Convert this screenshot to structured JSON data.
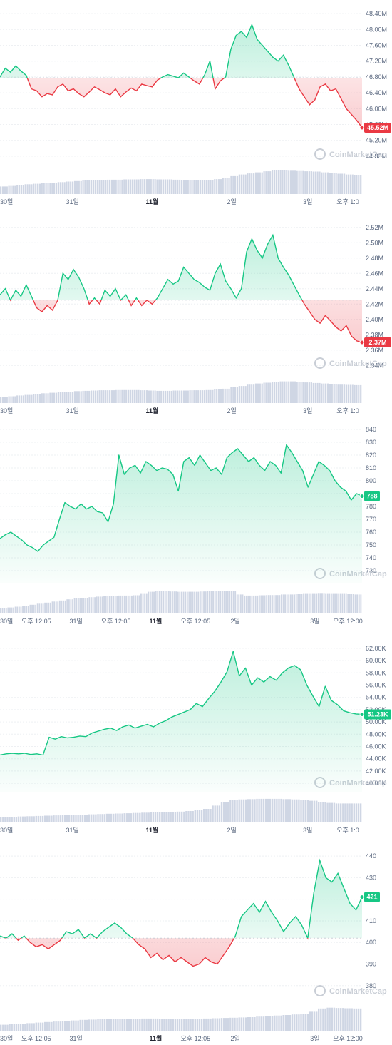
{
  "colors": {
    "up": "#16c784",
    "down": "#ea3943",
    "volume": "#cfd6e4",
    "grid": "#eef0f3",
    "tick": "#58667e"
  },
  "watermark": "CoinMarketCap",
  "chart_data": [
    {
      "type": "line",
      "ylim": [
        44.6,
        48.6
      ],
      "yticks": [
        "48.40M",
        "48.00M",
        "47.60M",
        "47.20M",
        "46.80M",
        "46.40M",
        "46.00M",
        "45.60M",
        "45.20M",
        "44.80M"
      ],
      "ytick_values": [
        48.4,
        48.0,
        47.6,
        47.2,
        46.8,
        46.4,
        46.0,
        45.6,
        45.2,
        44.8
      ],
      "xticks": [
        {
          "label": "30일",
          "pos": 0.0
        },
        {
          "label": "31일",
          "pos": 0.2
        },
        {
          "label": "11월",
          "pos": 0.42,
          "bold": true
        },
        {
          "label": "2일",
          "pos": 0.64
        },
        {
          "label": "3일",
          "pos": 0.85
        },
        {
          "label": "오후 1:0",
          "pos": 0.97
        }
      ],
      "baseline": 46.78,
      "current_label": "45.52M",
      "current_value": 45.52,
      "current_color": "down",
      "points": [
        46.8,
        47.02,
        46.92,
        47.08,
        46.95,
        46.84,
        46.5,
        46.45,
        46.3,
        46.38,
        46.35,
        46.55,
        46.62,
        46.45,
        46.5,
        46.38,
        46.3,
        46.42,
        46.55,
        46.48,
        46.4,
        46.35,
        46.5,
        46.3,
        46.42,
        46.52,
        46.45,
        46.62,
        46.58,
        46.55,
        46.72,
        46.8,
        46.86,
        46.82,
        46.78,
        46.9,
        46.8,
        46.7,
        46.62,
        46.85,
        47.2,
        46.5,
        46.7,
        46.8,
        47.5,
        47.85,
        47.95,
        47.8,
        48.12,
        47.75,
        47.6,
        47.45,
        47.3,
        47.2,
        47.35,
        47.1,
        46.8,
        46.5,
        46.3,
        46.1,
        46.22,
        46.55,
        46.62,
        46.45,
        46.5,
        46.25,
        46.0,
        45.85,
        45.7,
        45.52
      ],
      "volume": [
        0.28,
        0.3,
        0.33,
        0.36,
        0.38,
        0.4,
        0.42,
        0.44,
        0.46,
        0.48,
        0.5,
        0.51,
        0.52,
        0.53,
        0.53,
        0.54,
        0.54,
        0.55,
        0.55,
        0.54,
        0.54,
        0.53,
        0.52,
        0.52,
        0.5,
        0.5,
        0.55,
        0.6,
        0.66,
        0.72,
        0.76,
        0.8,
        0.84,
        0.87,
        0.88,
        0.86,
        0.85,
        0.84,
        0.83,
        0.8,
        0.77,
        0.75,
        0.72,
        0.7
      ]
    },
    {
      "type": "line",
      "ylim": [
        2.33,
        2.53
      ],
      "yticks": [
        "2.52M",
        "2.50M",
        "2.48M",
        "2.46M",
        "2.44M",
        "2.42M",
        "2.40M",
        "2.38M",
        "2.36M",
        "2.34M"
      ],
      "ytick_values": [
        2.52,
        2.5,
        2.48,
        2.46,
        2.44,
        2.42,
        2.4,
        2.38,
        2.36,
        2.34
      ],
      "xticks": [
        {
          "label": "30일",
          "pos": 0.0
        },
        {
          "label": "31일",
          "pos": 0.2
        },
        {
          "label": "11월",
          "pos": 0.42,
          "bold": true
        },
        {
          "label": "2일",
          "pos": 0.64
        },
        {
          "label": "3일",
          "pos": 0.85
        },
        {
          "label": "오후 1:0",
          "pos": 0.97
        }
      ],
      "baseline": 2.425,
      "current_label": "2.37M",
      "current_value": 2.37,
      "current_color": "down",
      "points": [
        2.432,
        2.44,
        2.425,
        2.438,
        2.43,
        2.445,
        2.43,
        2.415,
        2.41,
        2.418,
        2.412,
        2.425,
        2.46,
        2.452,
        2.465,
        2.455,
        2.44,
        2.42,
        2.428,
        2.42,
        2.438,
        2.43,
        2.44,
        2.425,
        2.432,
        2.418,
        2.428,
        2.418,
        2.425,
        2.42,
        2.428,
        2.44,
        2.452,
        2.446,
        2.45,
        2.468,
        2.46,
        2.452,
        2.448,
        2.442,
        2.438,
        2.46,
        2.472,
        2.45,
        2.44,
        2.428,
        2.44,
        2.488,
        2.505,
        2.49,
        2.48,
        2.498,
        2.51,
        2.48,
        2.468,
        2.458,
        2.445,
        2.432,
        2.42,
        2.41,
        2.4,
        2.395,
        2.405,
        2.398,
        2.39,
        2.385,
        2.392,
        2.378,
        2.372,
        2.37
      ],
      "volume": [
        0.22,
        0.25,
        0.28,
        0.3,
        0.33,
        0.36,
        0.38,
        0.4,
        0.42,
        0.44,
        0.45,
        0.46,
        0.47,
        0.47,
        0.48,
        0.48,
        0.48,
        0.47,
        0.46,
        0.45,
        0.45,
        0.46,
        0.46,
        0.47,
        0.47,
        0.48,
        0.5,
        0.53,
        0.58,
        0.63,
        0.68,
        0.72,
        0.75,
        0.78,
        0.8,
        0.8,
        0.78,
        0.76,
        0.74,
        0.72,
        0.7,
        0.68,
        0.67,
        0.66
      ]
    },
    {
      "type": "area",
      "ylim": [
        720,
        845
      ],
      "yticks": [
        "840",
        "830",
        "820",
        "810",
        "800",
        "790",
        "780",
        "770",
        "760",
        "750",
        "740",
        "730"
      ],
      "ytick_values": [
        840,
        830,
        820,
        810,
        800,
        790,
        780,
        770,
        760,
        750,
        740,
        730
      ],
      "xticks": [
        {
          "label": "30일",
          "pos": 0.0
        },
        {
          "label": "오후 12:05",
          "pos": 0.1
        },
        {
          "label": "31일",
          "pos": 0.21
        },
        {
          "label": "오후 12:05",
          "pos": 0.32
        },
        {
          "label": "11월",
          "pos": 0.43,
          "bold": true
        },
        {
          "label": "오후 12:05",
          "pos": 0.54
        },
        {
          "label": "2일",
          "pos": 0.65
        },
        {
          "label": "3일",
          "pos": 0.87
        },
        {
          "label": "오후 12:00",
          "pos": 0.97
        }
      ],
      "current_label": "788",
      "current_value": 788,
      "current_color": "up",
      "points": [
        755,
        758,
        760,
        757,
        754,
        750,
        748,
        745,
        750,
        753,
        756,
        770,
        783,
        780,
        778,
        782,
        778,
        780,
        776,
        775,
        768,
        782,
        820,
        805,
        810,
        812,
        806,
        815,
        812,
        808,
        810,
        809,
        805,
        792,
        815,
        818,
        812,
        820,
        814,
        808,
        810,
        805,
        818,
        822,
        825,
        820,
        815,
        818,
        812,
        808,
        815,
        812,
        806,
        828,
        822,
        815,
        808,
        795,
        805,
        815,
        812,
        808,
        800,
        795,
        792,
        785,
        790,
        788
      ],
      "volume": [
        0.2,
        0.22,
        0.25,
        0.28,
        0.32,
        0.36,
        0.4,
        0.44,
        0.48,
        0.52,
        0.56,
        0.58,
        0.6,
        0.62,
        0.64,
        0.65,
        0.66,
        0.66,
        0.67,
        0.72,
        0.8,
        0.82,
        0.82,
        0.81,
        0.8,
        0.8,
        0.8,
        0.81,
        0.82,
        0.83,
        0.84,
        0.82,
        0.7,
        0.66,
        0.66,
        0.67,
        0.68,
        0.68,
        0.7,
        0.7,
        0.71,
        0.72,
        0.72,
        0.73,
        0.72,
        0.72,
        0.72,
        0.71,
        0.7
      ]
    },
    {
      "type": "area",
      "ylim": [
        38.5,
        63.5
      ],
      "yticks": [
        "62.00K",
        "60.00K",
        "58.00K",
        "56.00K",
        "54.00K",
        "52.00K",
        "50.00K",
        "48.00K",
        "46.00K",
        "44.00K",
        "42.00K",
        "40.00K"
      ],
      "ytick_values": [
        62,
        60,
        58,
        56,
        54,
        52,
        50,
        48,
        46,
        44,
        42,
        40
      ],
      "xticks": [
        {
          "label": "30일",
          "pos": 0.0
        },
        {
          "label": "31일",
          "pos": 0.2
        },
        {
          "label": "11월",
          "pos": 0.42,
          "bold": true
        },
        {
          "label": "2일",
          "pos": 0.64
        },
        {
          "label": "3일",
          "pos": 0.85
        },
        {
          "label": "오후 1:0",
          "pos": 0.97
        }
      ],
      "current_label": "51.23K",
      "current_value": 51.23,
      "current_color": "up",
      "points": [
        44.6,
        44.8,
        44.9,
        44.8,
        44.9,
        44.7,
        44.8,
        44.6,
        47.5,
        47.2,
        47.6,
        47.4,
        47.5,
        47.7,
        47.6,
        48.2,
        48.5,
        48.8,
        49.0,
        48.6,
        49.2,
        49.5,
        49.0,
        49.3,
        49.6,
        49.2,
        49.8,
        50.2,
        50.8,
        51.2,
        51.6,
        52.0,
        53.0,
        52.5,
        53.8,
        55.0,
        56.5,
        58.2,
        61.5,
        57.5,
        58.8,
        56.0,
        57.2,
        56.5,
        57.4,
        56.8,
        58.0,
        58.8,
        59.2,
        58.5,
        56.0,
        54.2,
        52.5,
        55.8,
        53.5,
        52.8,
        51.8,
        51.5,
        51.3,
        51.23
      ],
      "volume": [
        0.2,
        0.21,
        0.22,
        0.23,
        0.24,
        0.25,
        0.26,
        0.27,
        0.28,
        0.29,
        0.3,
        0.31,
        0.32,
        0.33,
        0.34,
        0.35,
        0.36,
        0.37,
        0.38,
        0.39,
        0.4,
        0.42,
        0.45,
        0.5,
        0.62,
        0.75,
        0.82,
        0.85,
        0.86,
        0.87,
        0.87,
        0.87,
        0.86,
        0.85,
        0.83,
        0.8,
        0.76,
        0.72,
        0.7,
        0.7,
        0.7
      ]
    },
    {
      "type": "line",
      "ylim": [
        373,
        444
      ],
      "yticks": [
        "440",
        "430",
        "420",
        "410",
        "400",
        "390",
        "380"
      ],
      "ytick_values": [
        440,
        430,
        420,
        410,
        400,
        390,
        380
      ],
      "xticks": [
        {
          "label": "30일",
          "pos": 0.0
        },
        {
          "label": "오후 12:05",
          "pos": 0.1
        },
        {
          "label": "31일",
          "pos": 0.21
        },
        {
          "label": "11월",
          "pos": 0.43,
          "bold": true
        },
        {
          "label": "오후 12:05",
          "pos": 0.54
        },
        {
          "label": "2일",
          "pos": 0.65
        },
        {
          "label": "3일",
          "pos": 0.87
        },
        {
          "label": "오후 12:00",
          "pos": 0.97
        }
      ],
      "baseline": 402,
      "current_label": "421",
      "current_value": 421,
      "current_color": "up",
      "points": [
        403,
        402,
        404,
        401,
        403,
        400,
        398,
        399,
        397,
        399,
        401,
        405,
        404,
        406,
        402,
        404,
        402,
        405,
        407,
        409,
        407,
        404,
        402,
        399,
        397,
        393,
        395,
        392,
        394,
        391,
        393,
        391,
        389,
        390,
        393,
        391,
        390,
        394,
        398,
        403,
        412,
        415,
        418,
        414,
        419,
        414,
        410,
        405,
        409,
        412,
        408,
        402,
        423,
        438,
        430,
        428,
        432,
        425,
        418,
        415,
        421
      ],
      "volume": [
        0.22,
        0.24,
        0.26,
        0.28,
        0.3,
        0.32,
        0.34,
        0.36,
        0.38,
        0.4,
        0.41,
        0.42,
        0.43,
        0.43,
        0.44,
        0.44,
        0.45,
        0.45,
        0.44,
        0.43,
        0.42,
        0.42,
        0.43,
        0.45,
        0.46,
        0.47,
        0.48,
        0.49,
        0.5,
        0.52,
        0.54,
        0.56,
        0.58,
        0.6,
        0.62,
        0.7,
        0.82,
        0.85,
        0.84,
        0.83,
        0.82
      ]
    }
  ]
}
